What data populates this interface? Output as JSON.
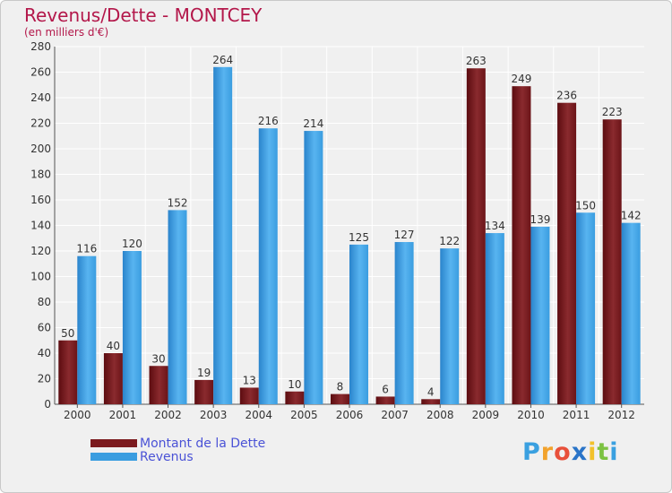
{
  "chart_data": {
    "type": "bar",
    "title": "Revenus/Dette - MONTCEY",
    "subtitle": "(en milliers d'€)",
    "categories": [
      "2000",
      "2001",
      "2002",
      "2003",
      "2004",
      "2005",
      "2006",
      "2007",
      "2008",
      "2009",
      "2010",
      "2011",
      "2012"
    ],
    "series": [
      {
        "name": "Montant de la Dette",
        "color": "#7b1a1e",
        "values": [
          50,
          40,
          30,
          19,
          13,
          10,
          8,
          6,
          4,
          263,
          249,
          236,
          223
        ]
      },
      {
        "name": "Revenus",
        "color": "#3a9de0",
        "values": [
          116,
          120,
          152,
          264,
          216,
          214,
          125,
          127,
          122,
          134,
          139,
          150,
          142
        ]
      }
    ],
    "ylim": [
      0,
      280
    ],
    "yticks": [
      0,
      20,
      40,
      60,
      80,
      100,
      120,
      140,
      160,
      180,
      200,
      220,
      240,
      260,
      280
    ],
    "grid": true,
    "legend_position": "bottom-left"
  },
  "logo": {
    "text": "Proxiti",
    "letters": [
      {
        "ch": "P",
        "color": "#3aa0e0"
      },
      {
        "ch": "r",
        "color": "#f2a22c"
      },
      {
        "ch": "o",
        "color": "#e8503a"
      },
      {
        "ch": "x",
        "color": "#2a74c8"
      },
      {
        "ch": "i",
        "color": "#f2c12c"
      },
      {
        "ch": "t",
        "color": "#7cc242"
      },
      {
        "ch": "i",
        "color": "#3aa0e0"
      }
    ]
  }
}
